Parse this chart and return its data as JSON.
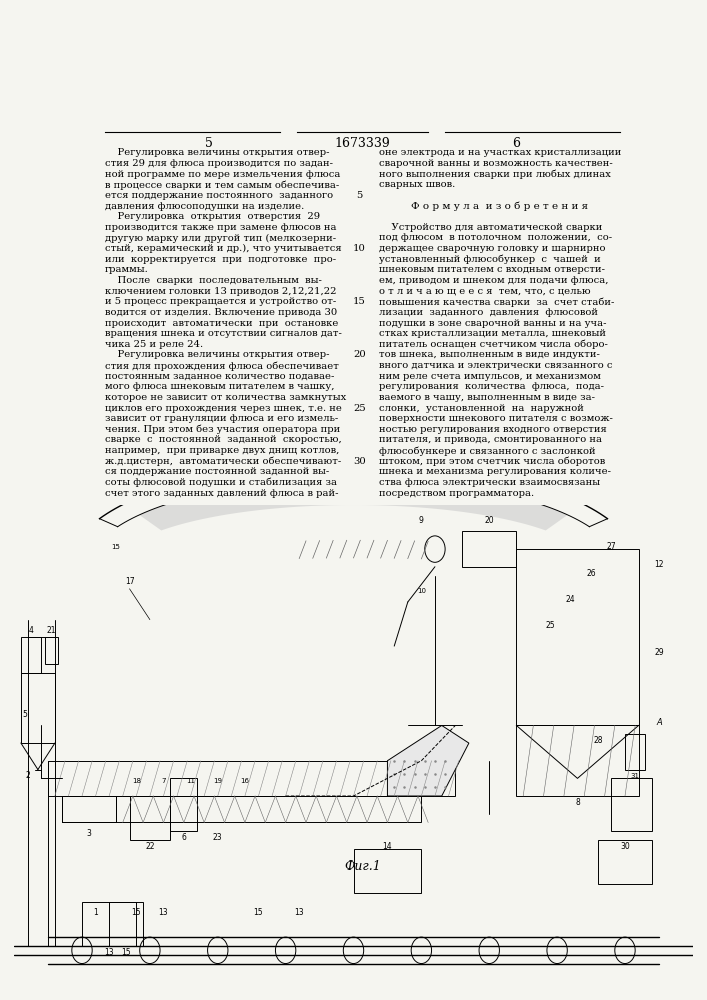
{
  "page_width": 7.07,
  "page_height": 10.0,
  "background_color": "#f5f5f0",
  "header_left_num": "5",
  "header_center_num": "1673339",
  "header_right_num": "6",
  "left_column_text": [
    "    Регулировка величины открытия отвер-",
    "стия 29 для флюса производится по задан-",
    "ной программе по мере измельчения флюса",
    "в процессе сварки и тем самым обеспечива-",
    "ется поддержание постоянного  заданного",
    "давления флюсоподушки на изделие.",
    "    Регулировка  открытия  отверстия  29",
    "производится также при замене флюсов на",
    "другую марку или другой тип (мелкозерни-",
    "стый, керамический и др.), что учитывается",
    "или  корректируется  при  подготовке  про-",
    "граммы.",
    "    После  сварки  последовательным  вы-",
    "ключением головки 13 приводов 2,12,21,22",
    "и 5 процесс прекращается и устройство от-",
    "водится от изделия. Включение привода 30",
    "происходит  автоматически  при  остановке",
    "вращения шнека и отсутствии сигналов дат-",
    "чика 25 и реле 24.",
    "    Регулировка величины открытия отвер-",
    "стия для прохождения флюса обеспечивает",
    "постоянным заданное количество подавае-",
    "мого флюса шнековым питателем в чашку,",
    "которое не зависит от количества замкнутых",
    "циклов его прохождения через шнек, т.е. не",
    "зависит от грануляции флюса и его измель-",
    "чения. При этом без участия оператора при",
    "сварке  с  постоянной  заданной  скоростью,",
    "например,  при приварке двух днищ котлов,",
    "ж.д.цистерн,  автоматически обеспечивают-",
    "ся поддержание постоянной заданной вы-",
    "соты флюсовой подушки и стабилизация за",
    "счет этого заданных давлений флюса в рай-"
  ],
  "right_column_text": [
    "оне электрода и на участках кристаллизации",
    "сварочной ванны и возможность качествен-",
    "ного выполнения сварки при любых длинах",
    "сварных швов.",
    "",
    "Ф о р м у л а  и з о б р е т е н и я",
    "",
    "    Устройство для автоматической сварки",
    "под флюсом  в потолочном  положении,  со-",
    "держащее сварочную головку и шарнирно",
    "установленный флюсобункер  с  чашей  и",
    "шнековым питателем с входным отверсти-",
    "ем, приводом и шнеком для подачи флюса,",
    "о т л и ч а ю щ е е с я  тем, что, с целью",
    "повышения качества сварки  за  счет стаби-",
    "лизации  заданного  давления  флюсовой",
    "подушки в зоне сварочной ванны и на уча-",
    "стках кристаллизации металла, шнековый",
    "питатель оснащен счетчиком числа оборо-",
    "тов шнека, выполненным в виде индукти-",
    "вного датчика и электрически связанного с",
    "ним реле счета импульсов, и механизмом",
    "регулирования  количества  флюса,  пода-",
    "ваемого в чашу, выполненным в виде за-",
    "слонки,  установленной  на  наружной",
    "поверхности шнекового питателя с возмож-",
    "ностью регулирования входного отверстия",
    "питателя, и привода, смонтированного на",
    "флюсобункере и связанного с заслонкой",
    "штоком, при этом счетчик числа оборотов",
    "шнека и механизма регулирования количе-",
    "ства флюса электрически взаимосвязаны",
    "посредством программатора."
  ],
  "line_numbers_left": [
    5,
    10,
    15,
    20,
    25,
    30
  ],
  "line_numbers_positions": [
    4,
    9,
    14,
    19,
    24,
    29
  ],
  "fig_caption": "Фиг.1",
  "fig_caption_style": "italic"
}
